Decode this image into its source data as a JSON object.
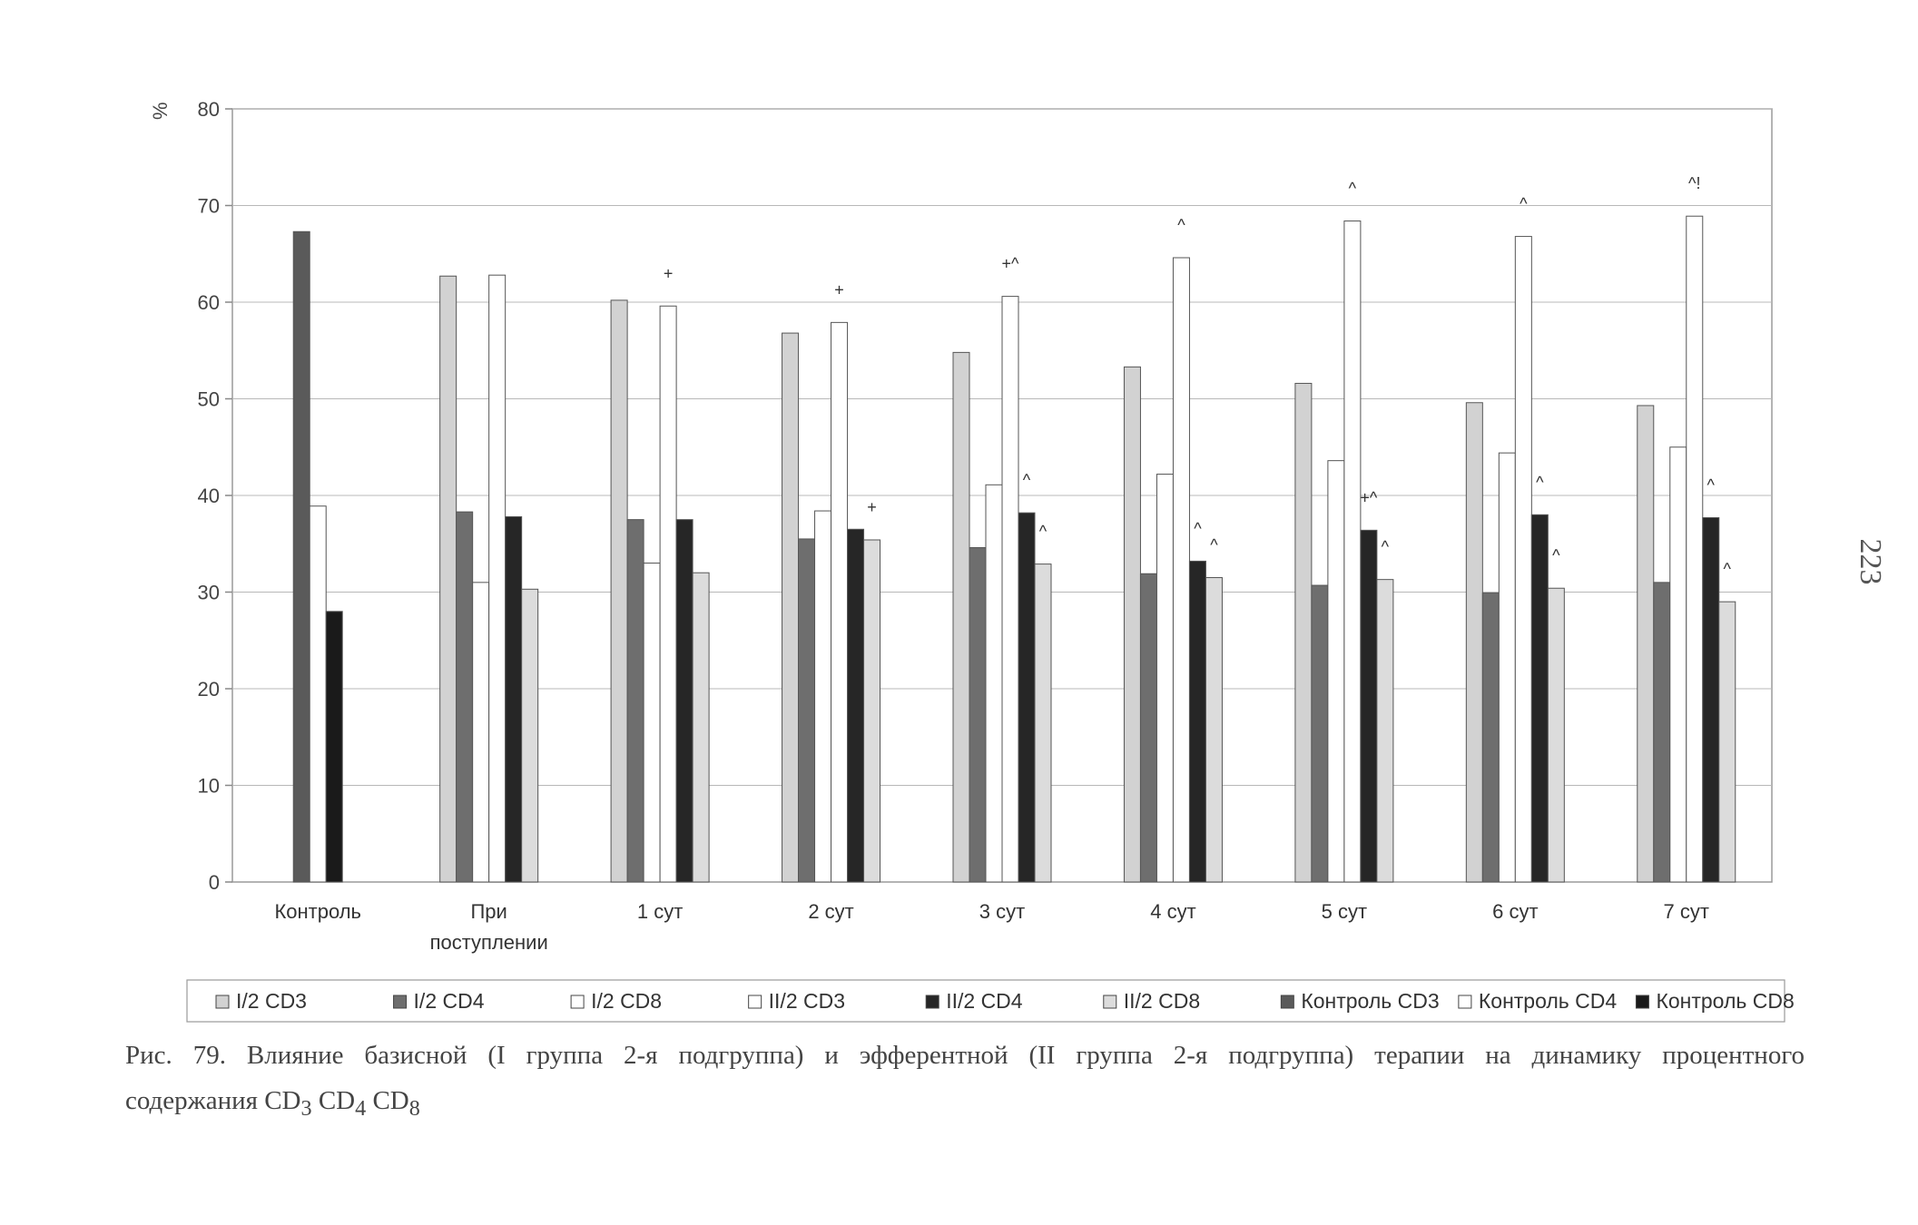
{
  "chart_data": {
    "type": "bar",
    "ylabel": "%",
    "ylim": [
      0,
      80
    ],
    "yticks": [
      "0",
      "10",
      "20",
      "30",
      "40",
      "50",
      "60",
      "70",
      "80"
    ],
    "grid": true,
    "legend_position": "bottom",
    "categories": [
      "Контроль",
      "При поступлении",
      "1 сут",
      "2 сут",
      "3 сут",
      "4 сут",
      "5 сут",
      "6 сут",
      "7 сут"
    ],
    "series": [
      {
        "name": "I/2 CD3",
        "color": "#d2d2d2",
        "values": [
          null,
          62.7,
          60.2,
          56.8,
          54.8,
          53.3,
          51.6,
          49.6,
          49.3
        ]
      },
      {
        "name": "I/2 CD4",
        "color": "#6e6e6e",
        "values": [
          null,
          38.3,
          37.5,
          35.5,
          34.6,
          31.9,
          30.7,
          29.9,
          31.0
        ]
      },
      {
        "name": "I/2 CD8",
        "color": "#ffffff",
        "values": [
          null,
          31.0,
          33.0,
          38.4,
          41.1,
          42.2,
          43.6,
          44.4,
          45.0
        ]
      },
      {
        "name": "II/2 CD3",
        "color": "#ffffff",
        "values": [
          null,
          62.8,
          59.6,
          57.9,
          60.6,
          64.6,
          68.4,
          66.8,
          68.9
        ]
      },
      {
        "name": "II/2 CD4",
        "color": "#262626",
        "values": [
          null,
          37.8,
          37.5,
          36.5,
          38.2,
          33.2,
          36.4,
          38.0,
          37.7
        ]
      },
      {
        "name": "II/2 CD8",
        "color": "#dcdcdc",
        "values": [
          null,
          30.3,
          32.0,
          35.4,
          32.9,
          31.5,
          31.3,
          30.4,
          29.0
        ]
      },
      {
        "name": "Контроль CD3",
        "color": "#5a5a5a",
        "values": [
          67.3,
          null,
          null,
          null,
          null,
          null,
          null,
          null,
          null
        ]
      },
      {
        "name": "Контроль CD4",
        "color": "#ffffff",
        "values": [
          38.9,
          null,
          null,
          null,
          null,
          null,
          null,
          null,
          null
        ]
      },
      {
        "name": "Контроль CD8",
        "color": "#1a1a1a",
        "values": [
          28.0,
          null,
          null,
          null,
          null,
          null,
          null,
          null,
          null
        ]
      }
    ],
    "annotations": [
      {
        "category": "1 сут",
        "series": "II/2 CD3",
        "text": "+"
      },
      {
        "category": "2 сут",
        "series": "II/2 CD3",
        "text": "+"
      },
      {
        "category": "2 сут",
        "series": "II/2 CD8",
        "text": "+"
      },
      {
        "category": "3 сут",
        "series": "II/2 CD3",
        "text": "+^"
      },
      {
        "category": "3 сут",
        "series": "II/2 CD4",
        "text": "^"
      },
      {
        "category": "3 сут",
        "series": "II/2 CD8",
        "text": "^"
      },
      {
        "category": "4 сут",
        "series": "II/2 CD3",
        "text": "^"
      },
      {
        "category": "4 сут",
        "series": "II/2 CD4",
        "text": "^"
      },
      {
        "category": "4 сут",
        "series": "II/2 CD8",
        "text": "^"
      },
      {
        "category": "5 сут",
        "series": "II/2 CD3",
        "text": "^"
      },
      {
        "category": "5 сут",
        "series": "II/2 CD4",
        "text": "+^"
      },
      {
        "category": "5 сут",
        "series": "II/2 CD8",
        "text": "^"
      },
      {
        "category": "6 сут",
        "series": "II/2 CD3",
        "text": "^"
      },
      {
        "category": "6 сут",
        "series": "II/2 CD4",
        "text": "^"
      },
      {
        "category": "6 сут",
        "series": "II/2 CD8",
        "text": "^"
      },
      {
        "category": "7 сут",
        "series": "II/2 CD3",
        "text": "^!"
      },
      {
        "category": "7 сут",
        "series": "II/2 CD4",
        "text": "^"
      },
      {
        "category": "7 сут",
        "series": "II/2 CD8",
        "text": "^"
      }
    ]
  },
  "caption": {
    "line1": "Рис. 79. Влияние базисной (I группа 2-я подгруппа) и эфферентной (II группа 2-я подгруппа) терапии на динамику процентного",
    "line2_prefix": "содержания CD",
    "sub3": "3",
    "mid1": " CD",
    "sub4": "4",
    "mid2": " CD",
    "sub8": "8"
  },
  "page_number": "223"
}
